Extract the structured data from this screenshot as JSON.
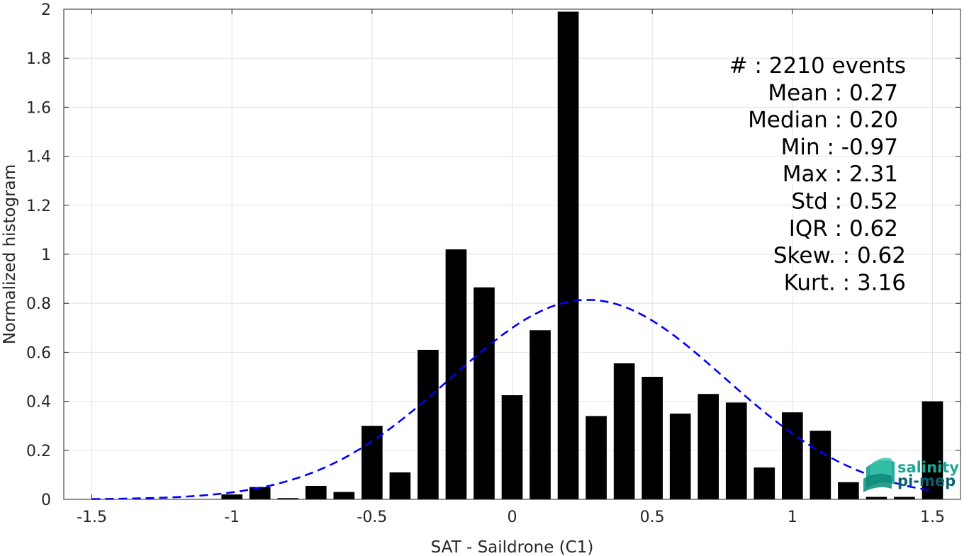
{
  "chart_data": {
    "type": "bar",
    "xlabel": "SAT - Saildrone (C1)",
    "ylabel": "Normalized histogram",
    "xlim": [
      -1.6,
      1.6
    ],
    "ylim": [
      0,
      2
    ],
    "grid": true,
    "xticks": [
      "-1.5",
      "-1",
      "-0.5",
      "0",
      "0.5",
      "1",
      "1.5"
    ],
    "xtick_values": [
      -1.5,
      -1,
      -0.5,
      0,
      0.5,
      1,
      1.5
    ],
    "yticks": [
      "0",
      "0.2",
      "0.4",
      "0.6",
      "0.8",
      "1",
      "1.2",
      "1.4",
      "1.6",
      "1.8",
      "2"
    ],
    "ytick_values": [
      0,
      0.2,
      0.4,
      0.6,
      0.8,
      1,
      1.2,
      1.4,
      1.6,
      1.8,
      2
    ],
    "bar_width": 0.075,
    "bar_color": "#000000",
    "x": [
      -1.0,
      -0.9,
      -0.8,
      -0.7,
      -0.6,
      -0.5,
      -0.4,
      -0.3,
      -0.2,
      -0.1,
      0.0,
      0.1,
      0.2,
      0.3,
      0.4,
      0.5,
      0.6,
      0.7,
      0.8,
      0.9,
      1.0,
      1.1,
      1.2,
      1.3,
      1.4,
      1.5
    ],
    "values": [
      0.02,
      0.05,
      0.005,
      0.055,
      0.03,
      0.3,
      0.11,
      0.61,
      1.02,
      0.865,
      0.425,
      0.69,
      1.99,
      0.34,
      0.555,
      0.5,
      0.35,
      0.43,
      0.395,
      0.13,
      0.355,
      0.28,
      0.07,
      0.01,
      0.01,
      0.4
    ],
    "fit_curve": {
      "type": "normal",
      "mean": 0.27,
      "std": 0.49,
      "x_range": [
        -1.5,
        1.5
      ],
      "color": "#0000ff",
      "style": "dashed"
    },
    "annotations": [
      "#  : 2210 events",
      "Mean : 0.27",
      "Median : 0.20",
      "Min : -0.97",
      "Max : 2.31",
      "Std : 0.52",
      "IQR : 0.62",
      "Skew. : 0.62",
      "Kurt. : 3.16"
    ]
  },
  "logo": {
    "line1": "salinity",
    "line2": "pi-mep",
    "color1": "#1aa89a",
    "color2": "#0d5f6e"
  }
}
